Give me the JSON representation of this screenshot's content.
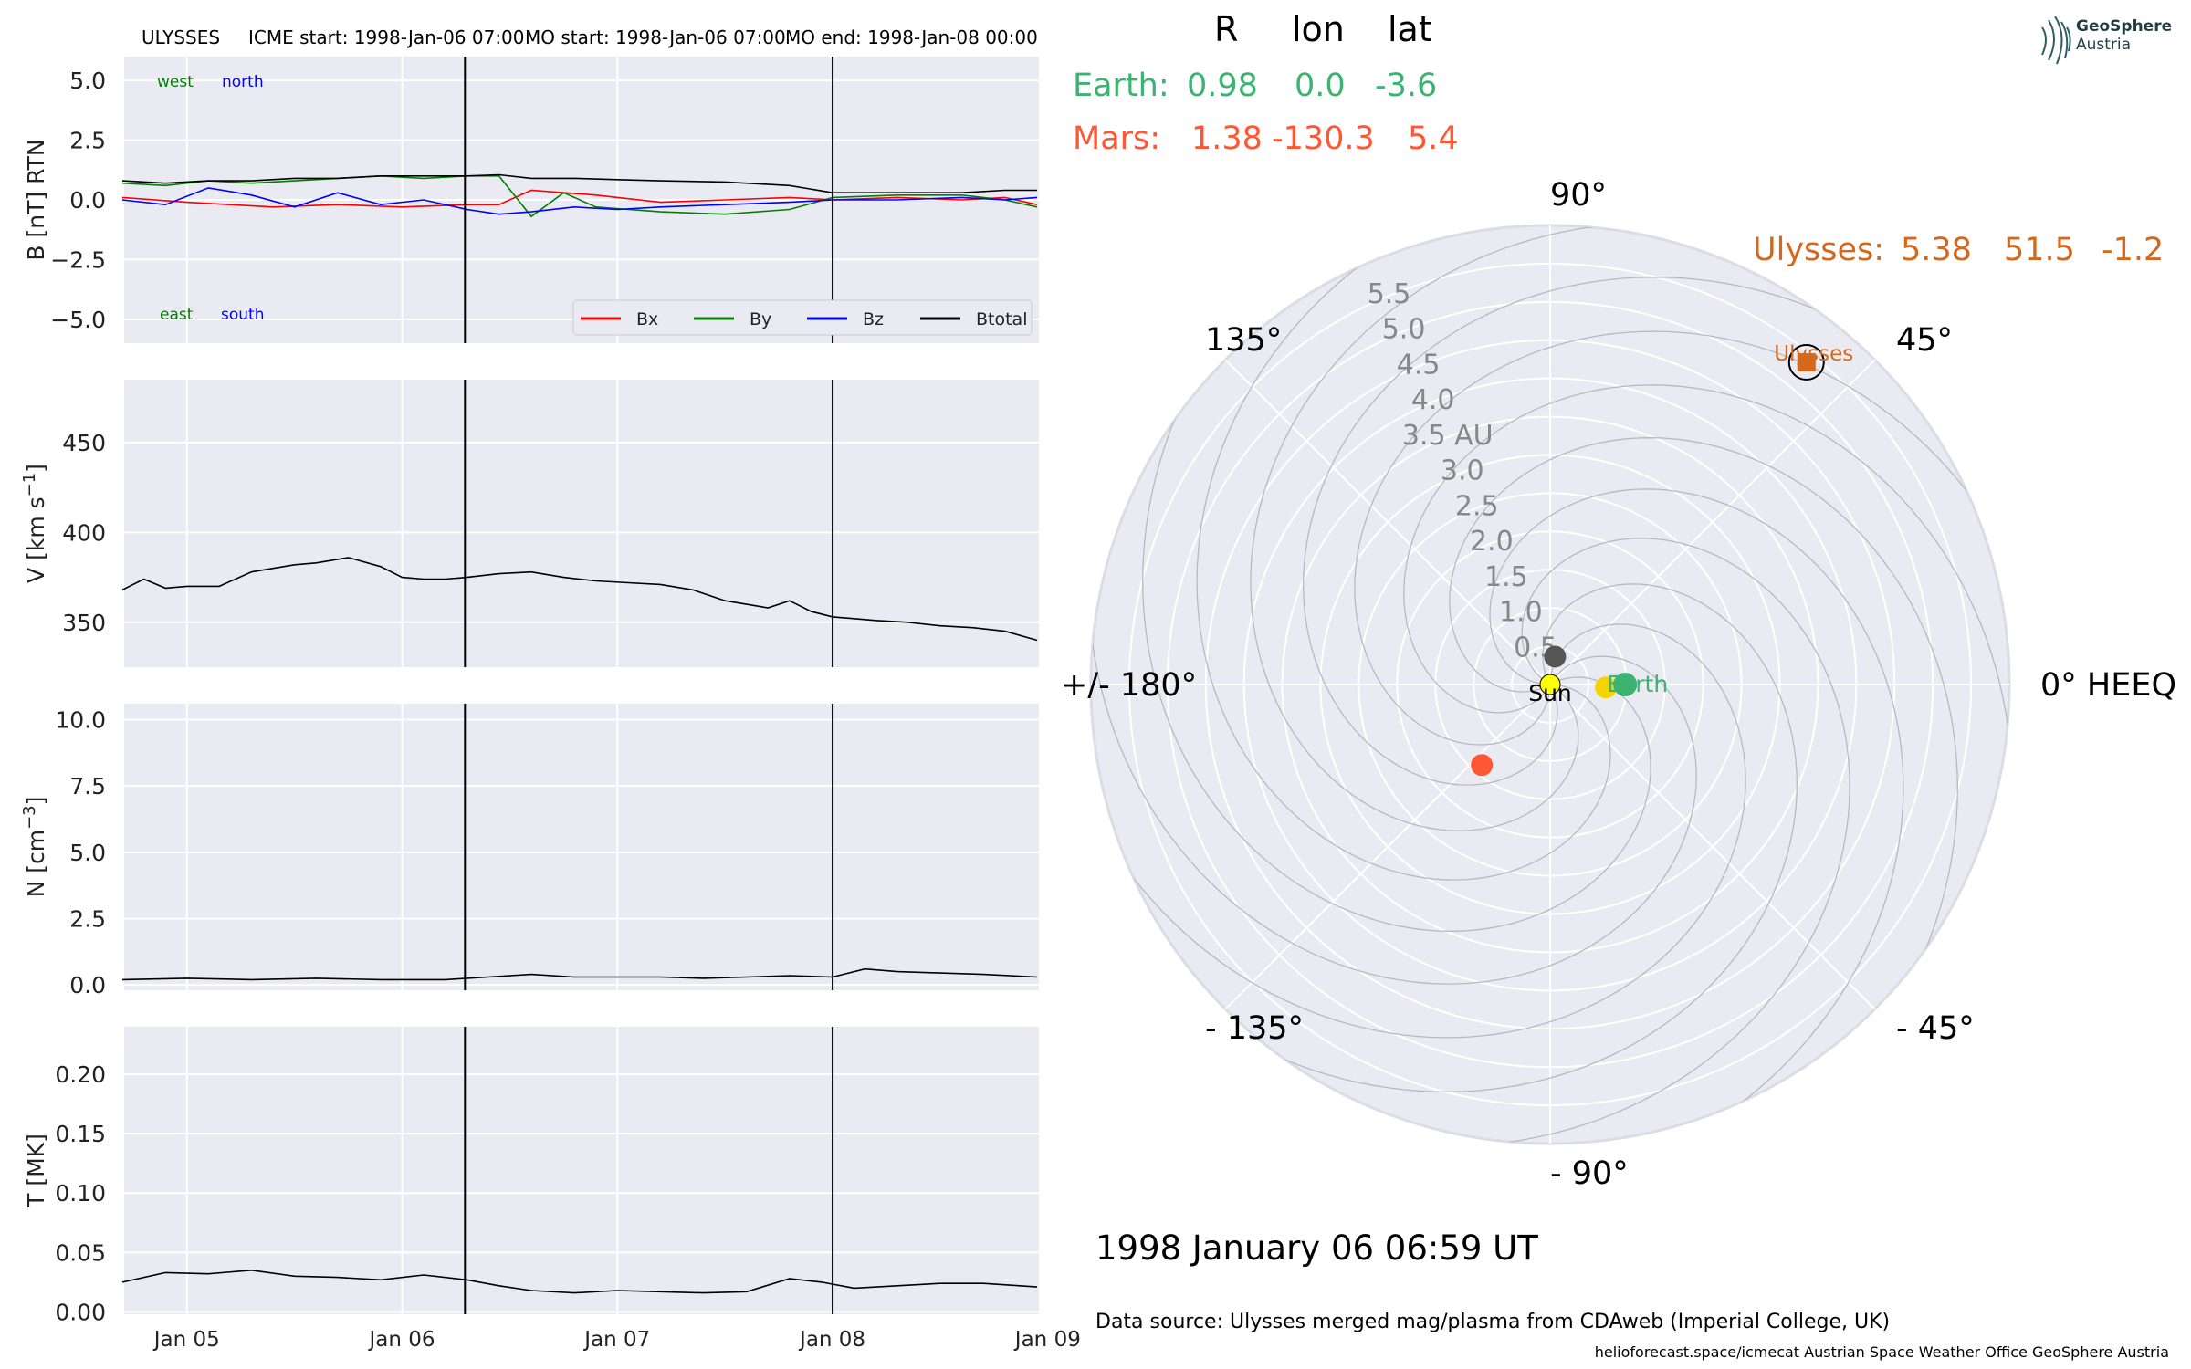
{
  "header": {
    "spacecraft": "ULYSSES",
    "icme_start": "ICME start: 1998-Jan-06 07:00",
    "mo_start": "MO start: 1998-Jan-06 07:00",
    "mo_end": "MO end: 1998-Jan-08 00:00"
  },
  "colors": {
    "axes_bg": "#eaeaf2",
    "grid": "#ffffff",
    "bx": "#ff0000",
    "by": "#008000",
    "bz": "#0000ff",
    "btotal": "#000000",
    "earth": "#3cb371",
    "mars": "#ff5733",
    "ulysses": "#d2691e",
    "sun": "#ffff00",
    "mercury": "#555555",
    "venus": "#f5d300"
  },
  "legend": {
    "bx": "Bx",
    "by": "By",
    "bz": "Bz",
    "btotal": "Btotal"
  },
  "annotations": {
    "west": "west",
    "north": "north",
    "east": "east",
    "south": "south"
  },
  "positions": {
    "head_r": "R",
    "head_lon": "lon",
    "head_lat": "lat",
    "earth_label": "Earth:",
    "earth_r": "0.98",
    "earth_lon": "0.0",
    "earth_lat": "-3.6",
    "mars_label": "Mars:",
    "mars_r": "1.38",
    "mars_lon": "-130.3",
    "mars_lat": "5.4",
    "ulysses_label": "Ulysses:",
    "ulysses_r": "5.38",
    "ulysses_lon": "51.5",
    "ulysses_lat": "-1.2"
  },
  "polar": {
    "angle_labels": {
      "a90": "90°",
      "a45": "45°",
      "a135": "135°",
      "a180": "+/- 180°",
      "a0": "0° HEEQ",
      "am45": "- 45°",
      "am90": "- 90°",
      "am135": "- 135°"
    },
    "radial_labels": [
      "0.5",
      "1.0",
      "1.5",
      "2.0",
      "2.5",
      "3.0",
      "3.5 AU",
      "4.0",
      "4.5",
      "5.0",
      "5.5"
    ],
    "sun_label": "Sun",
    "earth_label": "Earth",
    "ulysses_label": "Ulysses"
  },
  "datetime": "1998 January 06  06:59 UT",
  "data_source": "Data source: Ulysses merged mag/plasma from CDAweb (Imperial College, UK)",
  "credits": "helioforecast.space/icmecat   Austrian Space Weather Office   GeoSphere Austria",
  "logo": {
    "line1": "GeoSphere",
    "line2": "Austria"
  },
  "chart_data": [
    {
      "type": "line",
      "ylabel": "B [nT] RTN",
      "ylim": [
        -6.0,
        6.0
      ],
      "yticks": [
        "5.0",
        "2.5",
        "0.0",
        "−2.5",
        "−5.0"
      ],
      "ytick_values": [
        5.0,
        2.5,
        0.0,
        -2.5,
        -5.0
      ],
      "x_range_days": [
        "1998-01-04 17:00",
        "1998-01-09 11:00"
      ],
      "grid": true,
      "legend_position": "lower right",
      "vlines": [
        "1998-01-06 07:00",
        "1998-01-08 00:00"
      ],
      "series": [
        {
          "name": "Bx",
          "x_days_since_jan04": [
            0.7,
            1.0,
            1.2,
            1.4,
            1.7,
            2.0,
            2.3,
            2.45,
            2.6,
            2.9,
            3.2,
            3.5,
            3.8,
            4.0,
            4.3,
            4.6,
            4.8,
            4.95
          ],
          "values": [
            0.1,
            -0.1,
            -0.2,
            -0.3,
            -0.2,
            -0.3,
            -0.2,
            -0.2,
            0.4,
            0.2,
            -0.1,
            0.0,
            0.1,
            0.0,
            0.1,
            0.0,
            0.1,
            -0.2
          ]
        },
        {
          "name": "By",
          "x_days_since_jan04": [
            0.7,
            0.9,
            1.1,
            1.3,
            1.5,
            1.7,
            1.9,
            2.1,
            2.3,
            2.45,
            2.6,
            2.75,
            2.9,
            3.2,
            3.5,
            3.8,
            4.0,
            4.3,
            4.6,
            4.8,
            4.95
          ],
          "values": [
            0.7,
            0.6,
            0.8,
            0.7,
            0.8,
            0.9,
            1.0,
            0.9,
            1.0,
            1.0,
            -0.7,
            0.3,
            -0.3,
            -0.5,
            -0.6,
            -0.4,
            0.1,
            0.2,
            0.2,
            0.0,
            -0.3
          ]
        },
        {
          "name": "Bz",
          "x_days_since_jan04": [
            0.7,
            0.9,
            1.1,
            1.3,
            1.5,
            1.7,
            1.9,
            2.1,
            2.3,
            2.45,
            2.6,
            2.8,
            3.0,
            3.2,
            3.5,
            3.8,
            4.0,
            4.3,
            4.6,
            4.8,
            4.95
          ],
          "values": [
            0.0,
            -0.2,
            0.5,
            0.2,
            -0.3,
            0.3,
            -0.2,
            0.0,
            -0.4,
            -0.6,
            -0.5,
            -0.3,
            -0.4,
            -0.3,
            -0.2,
            -0.1,
            0.0,
            0.0,
            0.1,
            0.0,
            0.1
          ]
        },
        {
          "name": "Btotal",
          "x_days_since_jan04": [
            0.7,
            0.9,
            1.1,
            1.3,
            1.5,
            1.7,
            1.9,
            2.1,
            2.3,
            2.45,
            2.6,
            2.8,
            3.0,
            3.2,
            3.5,
            3.8,
            4.0,
            4.3,
            4.6,
            4.8,
            4.95
          ],
          "values": [
            0.8,
            0.7,
            0.8,
            0.8,
            0.9,
            0.9,
            1.0,
            1.0,
            1.0,
            1.05,
            0.9,
            0.9,
            0.85,
            0.8,
            0.75,
            0.6,
            0.3,
            0.3,
            0.3,
            0.4,
            0.4
          ]
        }
      ]
    },
    {
      "type": "line",
      "ylabel": "V [km s^-1]",
      "ylim": [
        325,
        485
      ],
      "yticks": [
        "450",
        "400",
        "350"
      ],
      "ytick_values": [
        450,
        400,
        350
      ],
      "grid": true,
      "vlines": [
        "1998-01-06 07:00",
        "1998-01-08 00:00"
      ],
      "series": [
        {
          "name": "V",
          "x_days_since_jan04": [
            0.7,
            0.8,
            0.9,
            1.0,
            1.15,
            1.3,
            1.4,
            1.5,
            1.6,
            1.75,
            1.9,
            2.0,
            2.1,
            2.2,
            2.3,
            2.45,
            2.6,
            2.75,
            2.9,
            3.05,
            3.2,
            3.35,
            3.5,
            3.6,
            3.7,
            3.8,
            3.9,
            4.0,
            4.1,
            4.2,
            4.35,
            4.5,
            4.65,
            4.8,
            4.95
          ],
          "values": [
            368,
            374,
            369,
            370,
            370,
            378,
            380,
            382,
            383,
            386,
            381,
            375,
            374,
            374,
            375,
            377,
            378,
            375,
            373,
            372,
            371,
            368,
            362,
            360,
            358,
            362,
            356,
            353,
            352,
            351,
            350,
            348,
            347,
            345,
            340
          ]
        }
      ]
    },
    {
      "type": "line",
      "ylabel": "N [cm^-3]",
      "ylim": [
        -0.2,
        10.6
      ],
      "yticks": [
        "10.0",
        "7.5",
        "5.0",
        "2.5",
        "0.0"
      ],
      "ytick_values": [
        10.0,
        7.5,
        5.0,
        2.5,
        0.0
      ],
      "grid": true,
      "vlines": [
        "1998-01-06 07:00",
        "1998-01-08 00:00"
      ],
      "series": [
        {
          "name": "N",
          "x_days_since_jan04": [
            0.7,
            1.0,
            1.3,
            1.6,
            1.9,
            2.2,
            2.4,
            2.6,
            2.8,
            3.0,
            3.2,
            3.4,
            3.6,
            3.8,
            4.0,
            4.15,
            4.3,
            4.5,
            4.7,
            4.95
          ],
          "values": [
            0.2,
            0.25,
            0.2,
            0.25,
            0.2,
            0.2,
            0.3,
            0.4,
            0.3,
            0.3,
            0.3,
            0.25,
            0.3,
            0.35,
            0.3,
            0.6,
            0.5,
            0.45,
            0.4,
            0.3
          ]
        }
      ]
    },
    {
      "type": "line",
      "ylabel": "T [MK]",
      "ylim": [
        -0.002,
        0.24
      ],
      "yticks": [
        "0.20",
        "0.15",
        "0.10",
        "0.05",
        "0.00"
      ],
      "ytick_values": [
        0.2,
        0.15,
        0.1,
        0.05,
        0.0
      ],
      "xticks": [
        "Jan 05",
        "Jan 06",
        "Jan 07",
        "Jan 08",
        "Jan 09"
      ],
      "grid": true,
      "vlines": [
        "1998-01-06 07:00",
        "1998-01-08 00:00"
      ],
      "series": [
        {
          "name": "T",
          "x_days_since_jan04": [
            0.7,
            0.9,
            1.1,
            1.3,
            1.5,
            1.7,
            1.9,
            2.1,
            2.3,
            2.45,
            2.6,
            2.8,
            3.0,
            3.2,
            3.4,
            3.6,
            3.8,
            3.95,
            4.1,
            4.3,
            4.5,
            4.7,
            4.95
          ],
          "values": [
            0.025,
            0.033,
            0.032,
            0.035,
            0.03,
            0.029,
            0.027,
            0.031,
            0.027,
            0.022,
            0.018,
            0.016,
            0.018,
            0.017,
            0.016,
            0.017,
            0.028,
            0.025,
            0.02,
            0.022,
            0.024,
            0.024,
            0.021
          ]
        }
      ]
    },
    {
      "type": "scatter",
      "subtype": "polar",
      "rlim": [
        0,
        6.0
      ],
      "radial_ticks": [
        0.5,
        1.0,
        1.5,
        2.0,
        2.5,
        3.0,
        3.5,
        4.0,
        4.5,
        5.0,
        5.5
      ],
      "angle_ticks_deg": [
        0,
        45,
        90,
        135,
        180,
        -135,
        -90,
        -45
      ],
      "series": [
        {
          "name": "Sun",
          "r": 0.0,
          "lon": 0.0
        },
        {
          "name": "Earth",
          "r": 0.98,
          "lon": 0.0
        },
        {
          "name": "Mars",
          "r": 1.38,
          "lon": -130.3
        },
        {
          "name": "Ulysses",
          "r": 5.38,
          "lon": 51.5
        }
      ]
    }
  ]
}
